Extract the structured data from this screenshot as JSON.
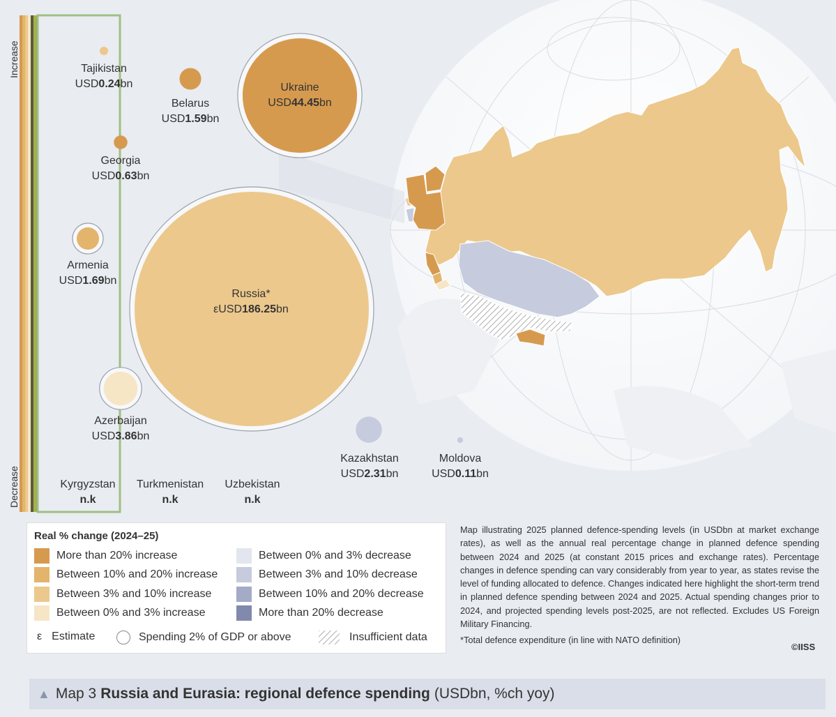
{
  "colors": {
    "inc_20_plus": "#d69a4f",
    "inc_10_20": "#e3b46c",
    "inc_3_10": "#ecc88c",
    "inc_0_3": "#f6e6c6",
    "dec_0_3": "#e3e6ee",
    "dec_3_10": "#c6cbdd",
    "dec_10_20": "#a3abc7",
    "dec_20_plus": "#8189ad"
  },
  "scale": {
    "increase_label": "Increase",
    "decrease_label": "Decrease"
  },
  "countries": [
    {
      "id": "tajikistan",
      "name": "Tajikistan",
      "prefix": "USD",
      "value": "0.24",
      "unit": "bn",
      "spending_usd_bn": 0.24,
      "change": "inc_3_10",
      "nato_2pct": false
    },
    {
      "id": "belarus",
      "name": "Belarus",
      "prefix": "USD",
      "value": "1.59",
      "unit": "bn",
      "spending_usd_bn": 1.59,
      "change": "inc_20_plus",
      "nato_2pct": false
    },
    {
      "id": "ukraine",
      "name": "Ukraine",
      "prefix": "USD",
      "value": "44.45",
      "unit": "bn",
      "spending_usd_bn": 44.45,
      "change": "inc_20_plus",
      "nato_2pct": true
    },
    {
      "id": "georgia",
      "name": "Georgia",
      "prefix": "USD",
      "value": "0.63",
      "unit": "bn",
      "spending_usd_bn": 0.63,
      "change": "inc_20_plus",
      "nato_2pct": false
    },
    {
      "id": "armenia",
      "name": "Armenia",
      "prefix": "USD",
      "value": "1.69",
      "unit": "bn",
      "spending_usd_bn": 1.69,
      "change": "inc_10_20",
      "nato_2pct": true
    },
    {
      "id": "russia",
      "name": "Russia*",
      "prefix": "εUSD",
      "value": "186.25",
      "unit": "bn",
      "spending_usd_bn": 186.25,
      "change": "inc_3_10",
      "nato_2pct": true
    },
    {
      "id": "azerbaijan",
      "name": "Azerbaijan",
      "prefix": "USD",
      "value": "3.86",
      "unit": "bn",
      "spending_usd_bn": 3.86,
      "change": "inc_0_3",
      "nato_2pct": true
    },
    {
      "id": "kazakhstan",
      "name": "Kazakhstan",
      "prefix": "USD",
      "value": "2.31",
      "unit": "bn",
      "spending_usd_bn": 2.31,
      "change": "dec_3_10",
      "nato_2pct": false
    },
    {
      "id": "moldova",
      "name": "Moldova",
      "prefix": "USD",
      "value": "0.11",
      "unit": "bn",
      "spending_usd_bn": 0.11,
      "change": "dec_3_10",
      "nato_2pct": false
    },
    {
      "id": "kyrgyzstan",
      "name": "Kyrgyzstan",
      "prefix": "",
      "value": "n.k",
      "unit": "",
      "spending_usd_bn": null,
      "change": null,
      "nato_2pct": false
    },
    {
      "id": "turkmenistan",
      "name": "Turkmenistan",
      "prefix": "",
      "value": "n.k",
      "unit": "",
      "spending_usd_bn": null,
      "change": null,
      "nato_2pct": false
    },
    {
      "id": "uzbekistan",
      "name": "Uzbekistan",
      "prefix": "",
      "value": "n.k",
      "unit": "",
      "spending_usd_bn": null,
      "change": null,
      "nato_2pct": false
    }
  ],
  "legend": {
    "title": "Real % change (2024–25)",
    "items": [
      {
        "key": "inc_20_plus",
        "label": "More than 20% increase"
      },
      {
        "key": "inc_10_20",
        "label": "Between 10% and 20% increase"
      },
      {
        "key": "inc_3_10",
        "label": "Between 3% and 10% increase"
      },
      {
        "key": "inc_0_3",
        "label": "Between 0% and 3% increase"
      },
      {
        "key": "dec_0_3",
        "label": "Between 0% and 3% decrease"
      },
      {
        "key": "dec_3_10",
        "label": "Between 3% and 10% decrease"
      },
      {
        "key": "dec_10_20",
        "label": "Between 10% and 20% decrease"
      },
      {
        "key": "dec_20_plus",
        "label": "More than 20% decrease"
      }
    ],
    "estimate_symbol": "ε",
    "estimate_label": "Estimate",
    "gdp_label": "Spending 2% of GDP or above",
    "insufficient_label": "Insufficient data"
  },
  "notes": "Map illustrating 2025 planned defence-spending levels (in USDbn at market exchange rates), as well as the annual real percentage change in planned defence spending between 2024 and 2025 (at constant 2015 prices and exchange rates). Percentage changes in defence spending can vary considerably from year to year, as states revise the level of funding allocated to defence. Changes indicated here highlight the short-term trend in planned defence spending between 2024 and 2025. Actual spending changes prior to 2024, and projected spending levels post-2025, are not reflected. Excludes US Foreign Military Financing.",
  "footnote": "*Total defence expenditure (in line with NATO definition)",
  "copyright": "©IISS",
  "caption": {
    "marker": "▲",
    "map_no": "Map 3",
    "title": "Russia and Eurasia: regional defence spending",
    "unit": "(USDbn, %ch yoy)"
  }
}
